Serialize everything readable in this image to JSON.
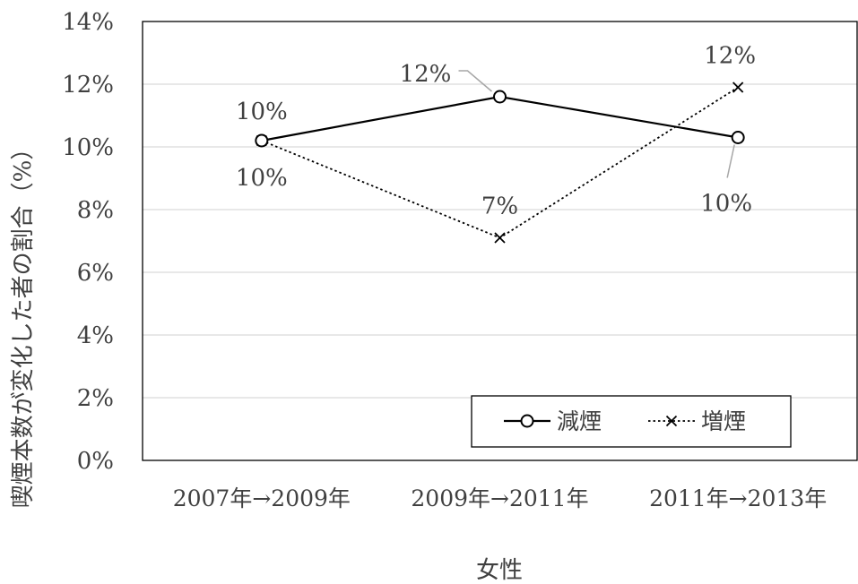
{
  "chart_data": {
    "type": "line",
    "title": "",
    "xlabel": "女性",
    "ylabel": "喫煙本数が変化した者の割合（%）",
    "categories": [
      "2007年→2009年",
      "2009年→2011年",
      "2011年→2013年"
    ],
    "ylim": [
      0,
      0.14
    ],
    "yticks": [
      0,
      0.02,
      0.04,
      0.06,
      0.08,
      0.1,
      0.12,
      0.14
    ],
    "ytick_labels": [
      "0%",
      "2%",
      "4%",
      "6%",
      "8%",
      "10%",
      "12%",
      "14%"
    ],
    "grid": true,
    "legend_position": "bottom-right",
    "series": [
      {
        "name": "減煙",
        "marker": "circle",
        "line_style": "solid",
        "color": "#000000",
        "values": [
          0.102,
          0.116,
          0.103
        ],
        "labels": [
          "10%",
          "12%",
          "10%"
        ]
      },
      {
        "name": "増煙",
        "marker": "x",
        "line_style": "dotted",
        "color": "#000000",
        "values": [
          0.102,
          0.071,
          0.119
        ],
        "labels": [
          "10%",
          "7%",
          "12%"
        ]
      }
    ]
  }
}
